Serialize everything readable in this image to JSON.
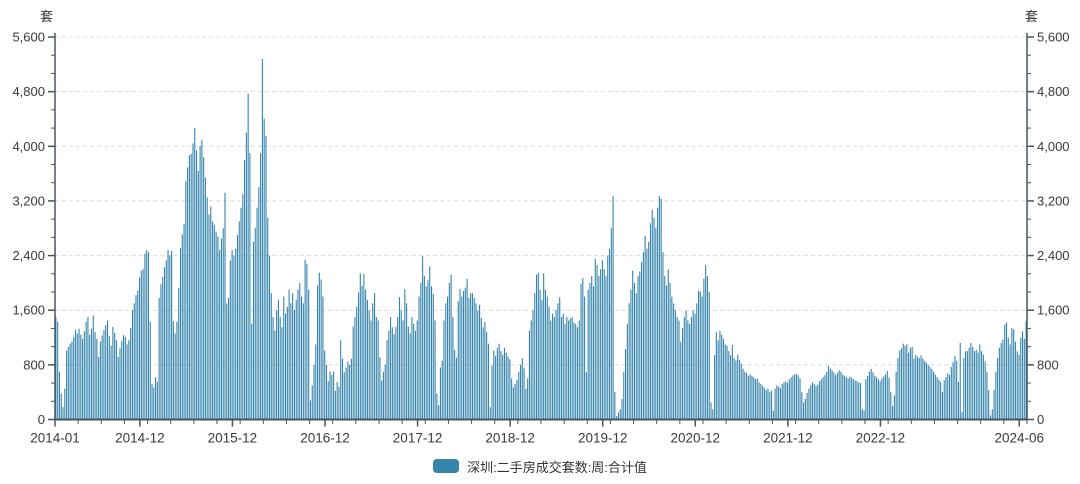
{
  "colors": {
    "bar": "#3584ac",
    "axis": "#47565f",
    "grid": "#dcdcdc",
    "text": "#3a3a3a"
  },
  "chart_data": {
    "type": "bar",
    "title": "",
    "legend": "深圳:二手房成交套数:周:合计值",
    "series_name": "深圳:二手房成交套数:周:合计值",
    "unit": "套",
    "ylabel": "套",
    "xlabel": "",
    "grid": true,
    "legend_position": "bottom",
    "frequency": "weekly",
    "start": "2014-01",
    "end": "2024-06",
    "ylim": [
      0,
      5600
    ],
    "y_ticks": [
      0,
      800,
      1600,
      2400,
      3200,
      4000,
      4800,
      5600
    ],
    "y_minor_divisions": 3,
    "x_domain_months": 126,
    "x_minor_step_months": 3,
    "x_ticks": [
      {
        "label": "2014-01",
        "month": 0
      },
      {
        "label": "2014-12",
        "month": 11
      },
      {
        "label": "2015-12",
        "month": 23
      },
      {
        "label": "2016-12",
        "month": 35
      },
      {
        "label": "2017-12",
        "month": 47
      },
      {
        "label": "2018-12",
        "month": 59
      },
      {
        "label": "2019-12",
        "month": 71
      },
      {
        "label": "2020-12",
        "month": 83
      },
      {
        "label": "2021-12",
        "month": 95
      },
      {
        "label": "2022-12",
        "month": 107
      },
      {
        "label": "2024-06",
        "month": 125
      }
    ],
    "values": [
      1500,
      1430,
      700,
      380,
      180,
      450,
      1010,
      1060,
      1110,
      1140,
      1210,
      1310,
      1260,
      1330,
      1240,
      1180,
      1290,
      1430,
      1500,
      1240,
      1330,
      1525,
      1280,
      1180,
      915,
      1140,
      1230,
      1310,
      1380,
      1450,
      1220,
      1080,
      1355,
      1270,
      1160,
      915,
      1040,
      1150,
      1235,
      1210,
      1100,
      1160,
      1340,
      1600,
      1700,
      1820,
      1890,
      2080,
      2180,
      2200,
      2430,
      2480,
      2450,
      1430,
      520,
      470,
      620,
      550,
      1780,
      1980,
      2090,
      2230,
      2330,
      2480,
      2400,
      2470,
      1440,
      1260,
      1430,
      1930,
      2510,
      2710,
      2860,
      3490,
      3690,
      3870,
      3890,
      4040,
      4270,
      3940,
      3640,
      4010,
      4090,
      3840,
      3540,
      3250,
      3000,
      3120,
      2900,
      2850,
      2750,
      2680,
      2480,
      2650,
      2800,
      3320,
      1700,
      1780,
      2330,
      2480,
      2400,
      2500,
      2700,
      2900,
      3100,
      3300,
      3800,
      4200,
      4770,
      3900,
      1400,
      2600,
      2800,
      3100,
      3400,
      3900,
      5280,
      4400,
      4150,
      2950,
      2400,
      1850,
      1500,
      1300,
      1600,
      1750,
      1500,
      1350,
      1800,
      1550,
      1650,
      1900,
      1700,
      1850,
      1600,
      1750,
      1900,
      2000,
      1800,
      1700,
      2340,
      2280,
      1900,
      280,
      500,
      800,
      1100,
      1960,
      2150,
      2050,
      1800,
      1010,
      800,
      560,
      700,
      650,
      700,
      420,
      550,
      480,
      1160,
      890,
      690,
      760,
      850,
      800,
      890,
      1360,
      1500,
      1650,
      1860,
      2140,
      1960,
      2130,
      1900,
      1750,
      1600,
      1450,
      1700,
      1850,
      1500,
      1450,
      910,
      570,
      700,
      800,
      1160,
      1300,
      1500,
      1350,
      1250,
      1360,
      1500,
      1790,
      1600,
      1450,
      1910,
      1700,
      1360,
      1260,
      1500,
      1400,
      1300,
      1450,
      1800,
      2000,
      2390,
      2100,
      1950,
      2040,
      2240,
      1950,
      1840,
      1450,
      380,
      210,
      760,
      860,
      1450,
      1700,
      1800,
      2000,
      2120,
      1500,
      1020,
      905,
      1730,
      1910,
      1800,
      1880,
      1930,
      2060,
      1780,
      1850,
      1850,
      1780,
      1700,
      1590,
      1680,
      1490,
      1350,
      1430,
      1280,
      1110,
      180,
      790,
      1010,
      930,
      1050,
      1110,
      1000,
      950,
      1050,
      980,
      920,
      880,
      600,
      470,
      520,
      580,
      700,
      800,
      900,
      750,
      450,
      600,
      1300,
      1450,
      1600,
      1850,
      2120,
      2150,
      1900,
      1750,
      2140,
      1900,
      1800,
      1650,
      1450,
      1550,
      1500,
      1600,
      1700,
      1790,
      1500,
      1550,
      1400,
      1500,
      1450,
      1480,
      1500,
      1420,
      1400,
      1350,
      1450,
      1990,
      2070,
      1800,
      690,
      1900,
      2000,
      2100,
      1950,
      2350,
      2260,
      2100,
      2200,
      2330,
      2200,
      2100,
      2400,
      2500,
      2800,
      3270,
      400,
      50,
      100,
      150,
      300,
      700,
      1030,
      1400,
      1700,
      1900,
      2180,
      2000,
      1850,
      2100,
      2170,
      2300,
      2450,
      2690,
      2500,
      2600,
      2870,
      3070,
      2950,
      2800,
      3100,
      3270,
      3230,
      2450,
      2100,
      1960,
      2200,
      2000,
      1800,
      1700,
      1600,
      1500,
      1450,
      1140,
      1340,
      1500,
      1590,
      1450,
      1400,
      1500,
      1600,
      1550,
      1700,
      1890,
      1870,
      1800,
      2060,
      2260,
      2100,
      1870,
      250,
      150,
      940,
      1280,
      1160,
      1300,
      1240,
      1180,
      1100,
      1080,
      1000,
      940,
      1090,
      900,
      865,
      950,
      870,
      820,
      745,
      700,
      680,
      640,
      660,
      640,
      620,
      590,
      600,
      545,
      520,
      490,
      460,
      430,
      450,
      400,
      420,
      130,
      450,
      500,
      480,
      460,
      520,
      545,
      560,
      540,
      590,
      620,
      645,
      660,
      670,
      645,
      600,
      400,
      250,
      300,
      390,
      450,
      500,
      545,
      520,
      490,
      510,
      560,
      590,
      620,
      650,
      700,
      785,
      740,
      720,
      690,
      650,
      680,
      720,
      700,
      660,
      640,
      620,
      600,
      630,
      610,
      590,
      570,
      560,
      540,
      535,
      150,
      130,
      590,
      640,
      700,
      740,
      690,
      640,
      620,
      590,
      560,
      600,
      630,
      660,
      710,
      610,
      400,
      200,
      350,
      700,
      900,
      1010,
      1040,
      1110,
      1080,
      1100,
      980,
      1050,
      1060,
      890,
      950,
      920,
      900,
      940,
      890,
      860,
      830,
      800,
      770,
      740,
      700,
      660,
      620,
      580,
      550,
      400,
      575,
      620,
      675,
      650,
      770,
      840,
      930,
      860,
      550,
      1120,
      110,
      900,
      1000,
      1000,
      1050,
      1120,
      1060,
      1000,
      1020,
      980,
      1100,
      1000,
      950,
      850,
      700,
      430,
      60,
      150,
      430,
      700,
      900,
      1050,
      1120,
      1170,
      1390,
      1420,
      1200,
      1100,
      1340,
      1320,
      1140,
      1000,
      950,
      1200,
      1290,
      1180,
      1440
    ]
  }
}
